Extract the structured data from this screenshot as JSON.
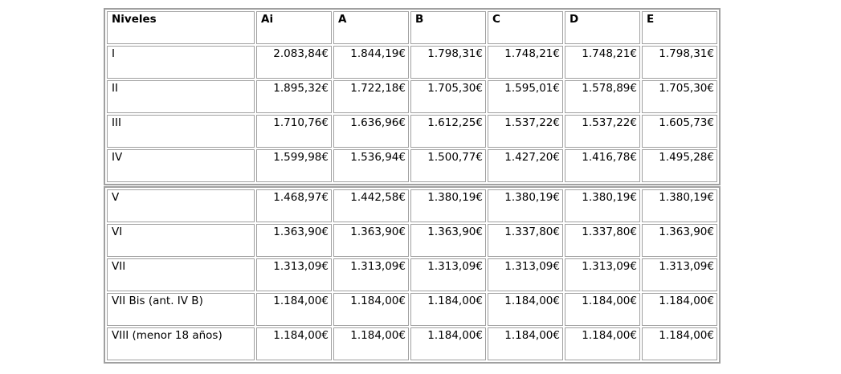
{
  "table": {
    "columns": [
      "Niveles",
      "Ai",
      "A",
      "B",
      "C",
      "D",
      "E"
    ],
    "border_color": "#a0a0a0",
    "text_color": "#000000",
    "sections": [
      {
        "rows": [
          {
            "level": "I",
            "values": [
              "2.083,84€",
              "1.844,19€",
              "1.798,31€",
              "1.748,21€",
              "1.748,21€",
              "1.798,31€"
            ]
          },
          {
            "level": "II",
            "values": [
              "1.895,32€",
              "1.722,18€",
              "1.705,30€",
              "1.595,01€",
              "1.578,89€",
              "1.705,30€"
            ]
          },
          {
            "level": "III",
            "values": [
              "1.710,76€",
              "1.636,96€",
              "1.612,25€",
              "1.537,22€",
              "1.537,22€",
              "1.605,73€"
            ]
          },
          {
            "level": "IV",
            "values": [
              "1.599,98€",
              "1.536,94€",
              "1.500,77€",
              "1.427,20€",
              "1.416,78€",
              "1.495,28€"
            ]
          }
        ]
      },
      {
        "rows": [
          {
            "level": "V",
            "values": [
              "1.468,97€",
              "1.442,58€",
              "1.380,19€",
              "1.380,19€",
              "1.380,19€",
              "1.380,19€"
            ]
          },
          {
            "level": "VI",
            "values": [
              "1.363,90€",
              "1.363,90€",
              "1.363,90€",
              "1.337,80€",
              "1.337,80€",
              "1.363,90€"
            ]
          },
          {
            "level": "VII",
            "values": [
              "1.313,09€",
              "1.313,09€",
              "1.313,09€",
              "1.313,09€",
              "1.313,09€",
              "1.313,09€"
            ]
          },
          {
            "level": "VII Bis (ant. IV B)",
            "values": [
              "1.184,00€",
              "1.184,00€",
              "1.184,00€",
              "1.184,00€",
              "1.184,00€",
              "1.184,00€"
            ]
          },
          {
            "level": "VIII (menor 18 años)",
            "values": [
              "1.184,00€",
              "1.184,00€",
              "1.184,00€",
              "1.184,00€",
              "1.184,00€",
              "1.184,00€"
            ]
          }
        ]
      }
    ]
  }
}
